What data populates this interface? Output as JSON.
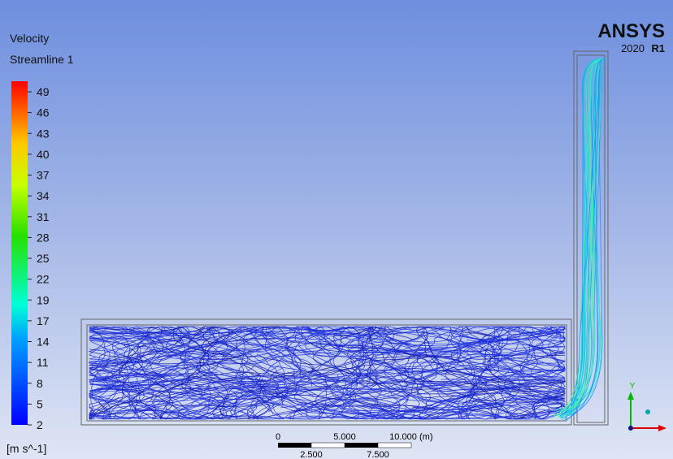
{
  "legend": {
    "title": "Velocity",
    "subtitle": "Streamline 1",
    "labels": [
      "49",
      "46",
      "43",
      "40",
      "37",
      "34",
      "31",
      "28",
      "25",
      "22",
      "19",
      "17",
      "14",
      "11",
      "8",
      "5",
      "2"
    ],
    "unit": "[m s^-1]"
  },
  "logo": {
    "name": "ANSYS",
    "version": "2020",
    "release": "R1"
  },
  "scale_bar": {
    "top_labels": [
      "0",
      "5.000",
      "10.000"
    ],
    "unit": "(m)",
    "bottom_labels": [
      "2.500",
      "7.500"
    ]
  },
  "triad": {
    "y_label": "Y"
  }
}
